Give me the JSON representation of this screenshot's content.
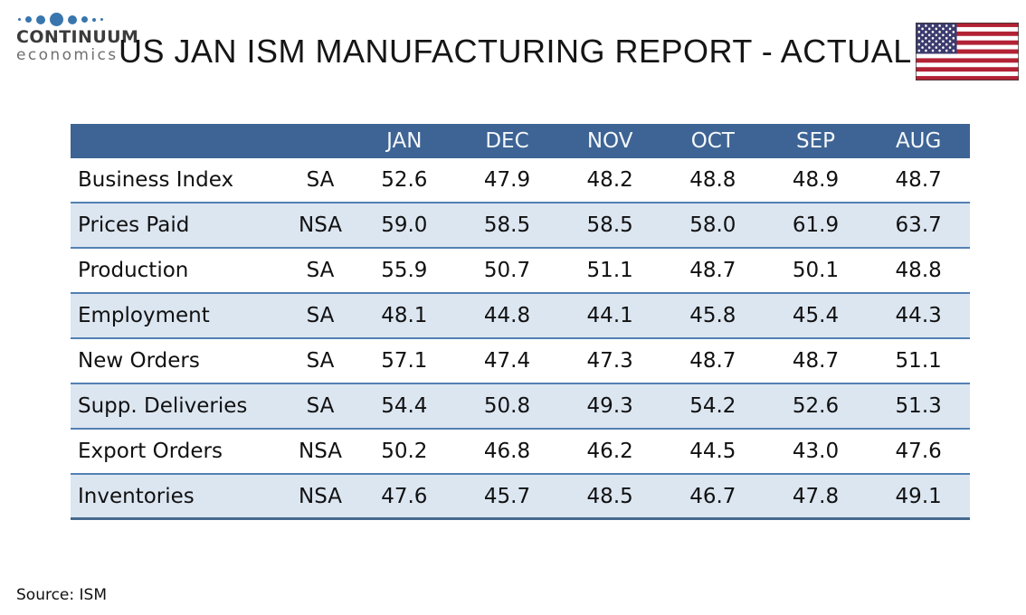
{
  "logo": {
    "brand": "CONTINUUM",
    "sub": "economics"
  },
  "title": "US JAN ISM MANUFACTURING REPORT - ACTUAL",
  "flag": {
    "name": "us-flag"
  },
  "source_note": "Source: ISM",
  "colors": {
    "header_bg": "#3d6494",
    "band_bg": "#dce6f1",
    "row_border": "#5380b4",
    "table_end_border": "#47698e",
    "dot_blue": "#3876ad",
    "flag_red": "#b22234",
    "flag_canton": "#3c3b6e"
  },
  "chart_data": {
    "type": "table",
    "title": "US JAN ISM MANUFACTURING REPORT - ACTUAL",
    "columns": [
      "",
      "",
      "JAN",
      "DEC",
      "NOV",
      "OCT",
      "SEP",
      "AUG"
    ],
    "rows": [
      {
        "label": "Business Index",
        "adjustment": "SA",
        "values": [
          "52.6",
          "47.9",
          "48.2",
          "48.8",
          "48.9",
          "48.7"
        ]
      },
      {
        "label": "Prices Paid",
        "adjustment": "NSA",
        "values": [
          "59.0",
          "58.5",
          "58.5",
          "58.0",
          "61.9",
          "63.7"
        ]
      },
      {
        "label": "Production",
        "adjustment": "SA",
        "values": [
          "55.9",
          "50.7",
          "51.1",
          "48.7",
          "50.1",
          "48.8"
        ]
      },
      {
        "label": "Employment",
        "adjustment": "SA",
        "values": [
          "48.1",
          "44.8",
          "44.1",
          "45.8",
          "45.4",
          "44.3"
        ]
      },
      {
        "label": "New Orders",
        "adjustment": "SA",
        "values": [
          "57.1",
          "47.4",
          "47.3",
          "48.7",
          "48.7",
          "51.1"
        ]
      },
      {
        "label": "Supp. Deliveries",
        "adjustment": "SA",
        "values": [
          "54.4",
          "50.8",
          "49.3",
          "54.2",
          "52.6",
          "51.3"
        ]
      },
      {
        "label": "Export Orders",
        "adjustment": "NSA",
        "values": [
          "50.2",
          "46.8",
          "46.2",
          "44.5",
          "43.0",
          "47.6"
        ]
      },
      {
        "label": "Inventories",
        "adjustment": "NSA",
        "values": [
          "47.6",
          "45.7",
          "48.5",
          "46.7",
          "47.8",
          "49.1"
        ]
      }
    ],
    "source": "ISM"
  }
}
